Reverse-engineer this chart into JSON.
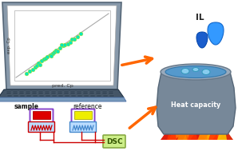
{
  "bg_color": "#ffffff",
  "scatter_x": [
    0.08,
    0.12,
    0.15,
    0.18,
    0.2,
    0.22,
    0.25,
    0.28,
    0.3,
    0.32,
    0.35,
    0.38,
    0.4,
    0.42,
    0.44,
    0.46,
    0.5,
    0.52,
    0.55,
    0.58,
    0.6,
    0.63,
    0.66,
    0.7,
    0.24,
    0.36,
    0.48
  ],
  "scatter_y": [
    0.06,
    0.1,
    0.13,
    0.17,
    0.19,
    0.23,
    0.27,
    0.29,
    0.31,
    0.33,
    0.36,
    0.38,
    0.41,
    0.43,
    0.42,
    0.47,
    0.51,
    0.52,
    0.54,
    0.57,
    0.61,
    0.62,
    0.65,
    0.71,
    0.21,
    0.34,
    0.52
  ],
  "scatter_color": "#00e8b8",
  "scatter_edge": "#dddd00",
  "line_color": "#aaaaaa",
  "arrow_color": "#ff6600",
  "heat_capacity_text": "Heat capacity",
  "il_text": "IL",
  "sample_text": "sample",
  "reference_text": "reference",
  "dsc_text": "DSC",
  "exp_cp_text": "exp. Cp",
  "pred_cp_text": "pred. Cp",
  "laptop_frame": "#7799bb",
  "laptop_screen_bg": "#eef4f8",
  "laptop_keyboard": "#445566",
  "pot_body": "#778899",
  "pot_rim": "#99aabb",
  "pot_liquid": "#5599cc",
  "bubble_color": "#88ccee",
  "drop1_color": "#2277ee",
  "drop2_color": "#3399ff",
  "flame_red": "#dd1100",
  "flame_orange": "#ff6600",
  "flame_yellow": "#ffaa00",
  "sample_red": "#dd0000",
  "ref_yellow": "#eeee00",
  "dsc_bg": "#ccee88",
  "dsc_border": "#88aa44",
  "heater_bg": "#bbddff",
  "purple_border": "#8844cc",
  "wire_red": "#cc0000",
  "wire_blue": "#4488cc"
}
